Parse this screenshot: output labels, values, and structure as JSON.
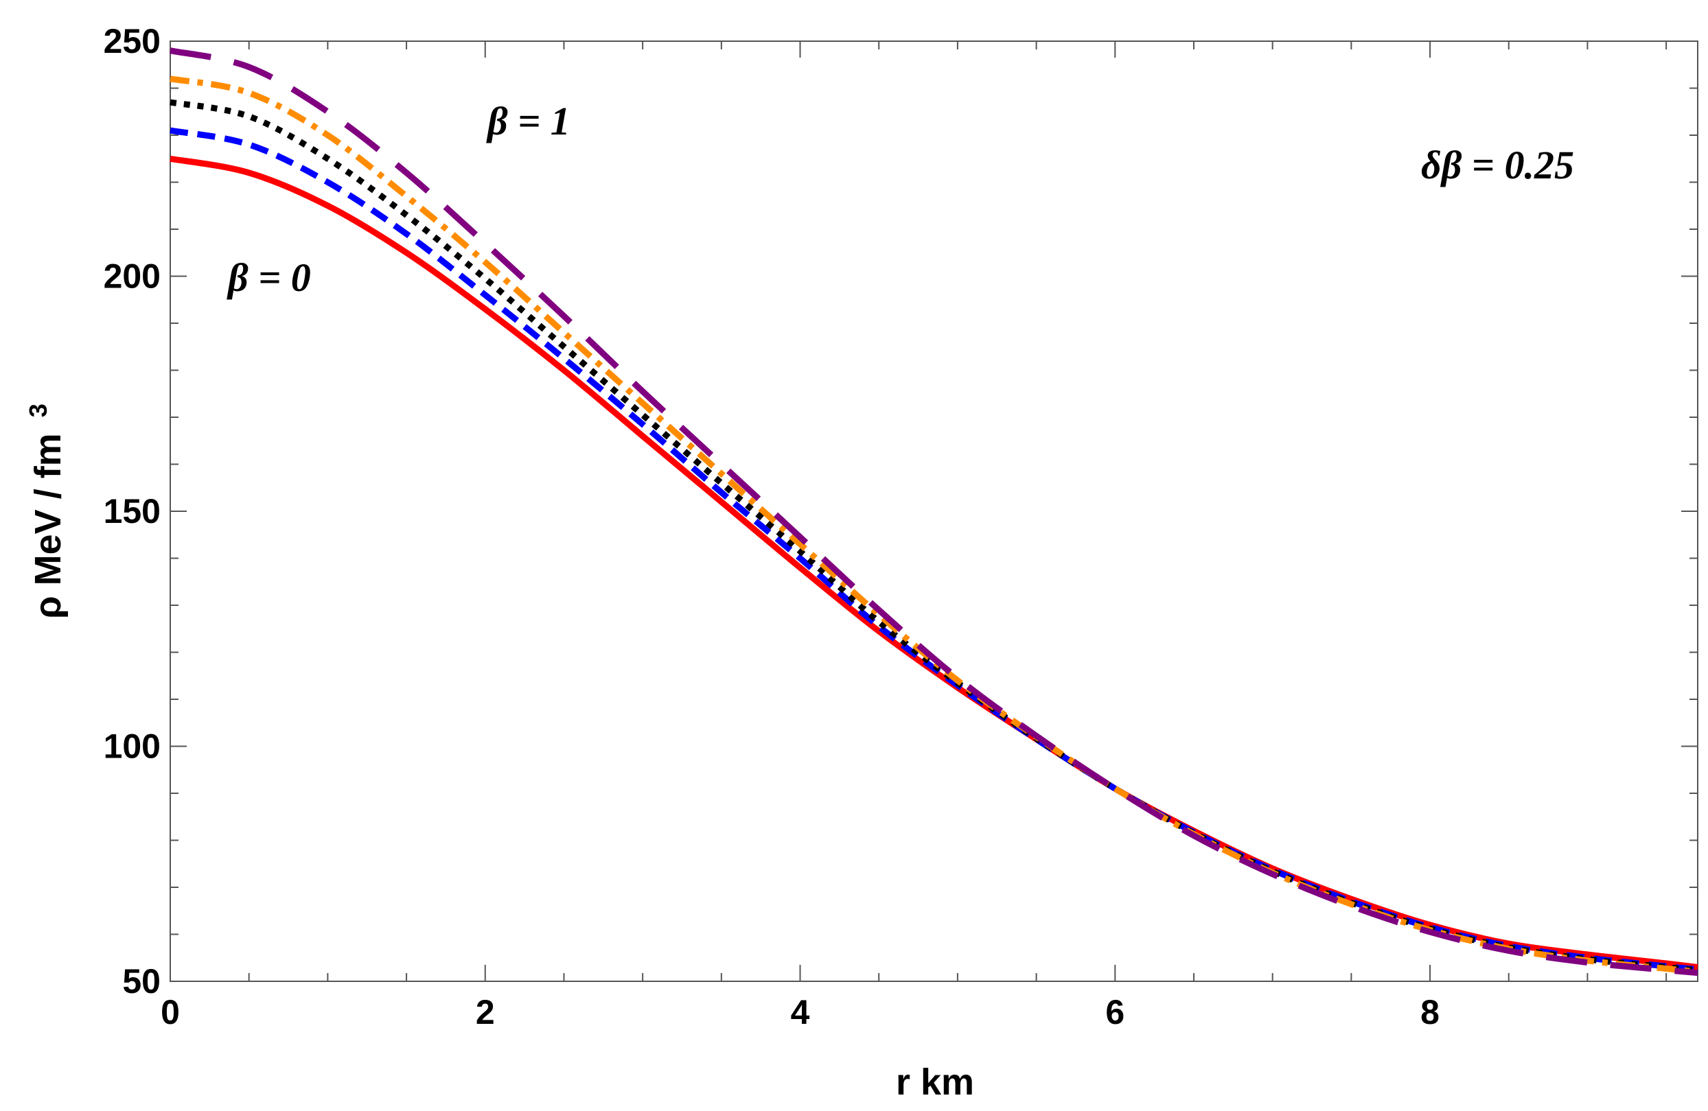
{
  "chart_data": {
    "type": "line",
    "xlabel": "r  km",
    "ylabel": "ρ  MeV / fm",
    "ylabel_sup": "3",
    "xlim": [
      0,
      9.7
    ],
    "ylim": [
      50,
      250
    ],
    "xticks": [
      0,
      2,
      4,
      6,
      8
    ],
    "yticks": [
      50,
      100,
      150,
      200,
      250
    ],
    "grid": false,
    "annotations": [
      {
        "id": "beta1",
        "text": "β = 1"
      },
      {
        "id": "beta0",
        "text": "β = 0"
      },
      {
        "id": "dbeta",
        "text": "δβ = 0.25"
      }
    ],
    "series": [
      {
        "color": "#ff0000",
        "dash": "solid",
        "x": [
          0,
          0.5,
          1,
          1.5,
          2,
          2.5,
          3,
          3.5,
          4,
          4.5,
          5,
          5.5,
          6,
          6.5,
          7,
          7.5,
          8,
          8.5,
          9,
          9.5,
          9.7
        ],
        "y": [
          225,
          222,
          215,
          205,
          193,
          180,
          166,
          152,
          138,
          124.5,
          112.5,
          101.5,
          91,
          82,
          74,
          67.5,
          62,
          58,
          55.7,
          53.8,
          53
        ]
      },
      {
        "color": "#0000ff",
        "dash": "dashed",
        "x": [
          0,
          0.5,
          1,
          1.5,
          2,
          2.5,
          3,
          3.5,
          4,
          4.5,
          5,
          5.5,
          6,
          6.5,
          7,
          7.5,
          8,
          8.5,
          9,
          9.5,
          9.7
        ],
        "y": [
          231,
          228,
          220,
          209,
          196,
          182.5,
          168.5,
          154,
          140,
          125.5,
          113,
          101.5,
          91,
          81.7,
          73.7,
          67,
          61.5,
          57.5,
          55,
          53.2,
          52.5
        ]
      },
      {
        "color": "#000000",
        "dash": "dotted",
        "x": [
          0,
          0.5,
          1,
          1.5,
          2,
          2.5,
          3,
          3.5,
          4,
          4.5,
          5,
          5.5,
          6,
          6.5,
          7,
          7.5,
          8,
          8.5,
          9,
          9.5,
          9.7
        ],
        "y": [
          237,
          234,
          225,
          213,
          199.5,
          185,
          170.5,
          156,
          141.5,
          126.5,
          113.5,
          101.7,
          91,
          81.5,
          73.4,
          66.7,
          61.2,
          57.2,
          54.7,
          53,
          52.3
        ]
      },
      {
        "color": "#ff8c00",
        "dash": "dashdot",
        "x": [
          0,
          0.5,
          1,
          1.5,
          2,
          2.5,
          3,
          3.5,
          4,
          4.5,
          5,
          5.5,
          6,
          6.5,
          7,
          7.5,
          8,
          8.5,
          9,
          9.5,
          9.7
        ],
        "y": [
          242,
          239,
          230,
          217,
          203,
          188,
          173,
          158,
          143,
          128,
          114,
          102,
          91,
          81.3,
          73.1,
          66.4,
          60.9,
          56.9,
          54.4,
          52.7,
          52
        ]
      },
      {
        "color": "#800080",
        "dash": "longdash",
        "x": [
          0,
          0.5,
          1,
          1.5,
          2,
          2.5,
          3,
          3.5,
          4,
          4.5,
          5,
          5.5,
          6,
          6.5,
          7,
          7.5,
          8,
          8.5,
          9,
          9.5,
          9.7
        ],
        "y": [
          248,
          244.5,
          235,
          222,
          207,
          191.5,
          175.5,
          160,
          144.5,
          129,
          114.5,
          102.2,
          91,
          81,
          72.8,
          66,
          60.5,
          56.5,
          54,
          52.4,
          51.8
        ]
      }
    ]
  }
}
